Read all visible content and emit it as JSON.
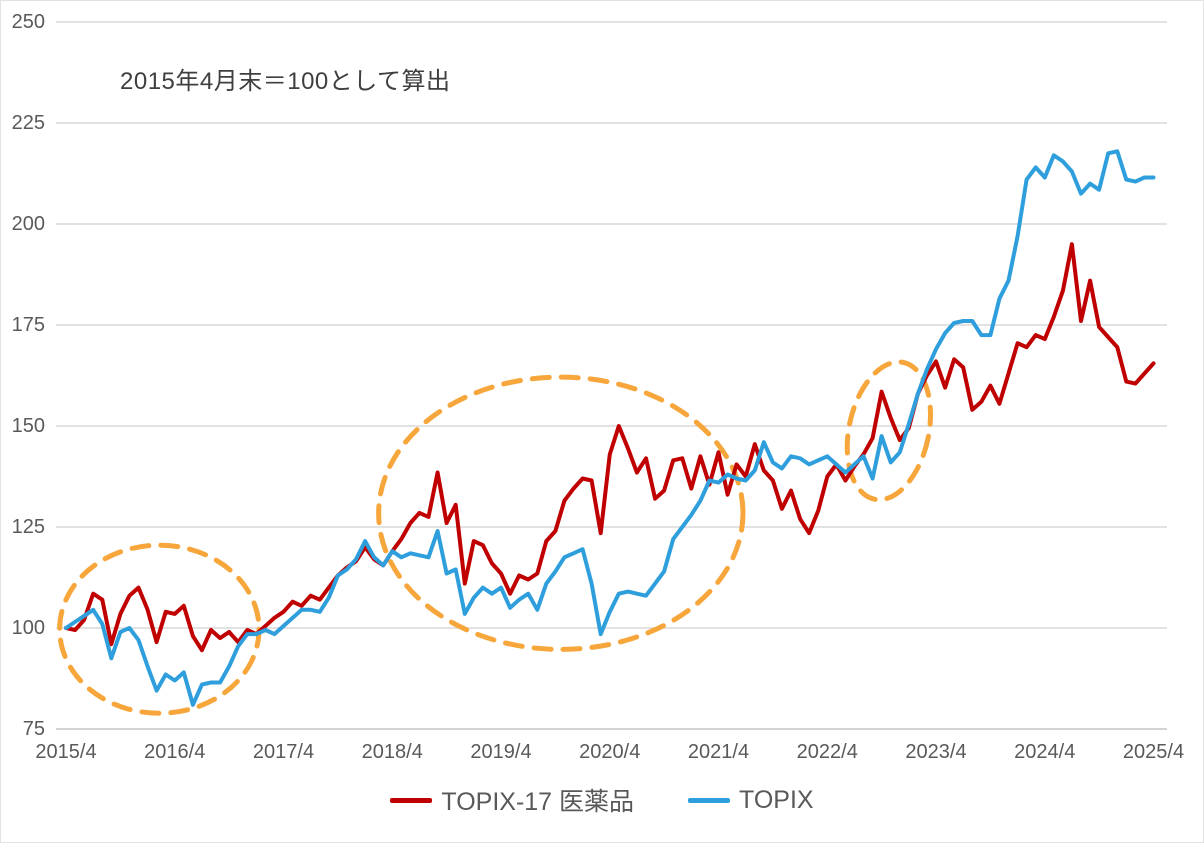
{
  "annotation": {
    "note": "2015年4月末＝100として算出"
  },
  "colors": {
    "pharma": "#C00000",
    "topix": "#2E9FDC",
    "highlight": "#F6A63B",
    "grid": "#D9D9D9",
    "axis_line": "#C4C4C4",
    "axis_text": "#595959",
    "note_text": "#3F3F3F"
  },
  "chart_data": {
    "type": "line",
    "title": "",
    "note": "2015年4月末＝100として算出",
    "xlabel": "",
    "ylabel": "",
    "ylim": [
      75,
      250
    ],
    "grid": "horizontal",
    "legend_position": "bottom-center",
    "y_ticks": [
      75,
      100,
      125,
      150,
      175,
      200,
      225,
      250
    ],
    "x_tick_labels": [
      "2015/4",
      "2016/4",
      "2017/4",
      "2018/4",
      "2019/4",
      "2020/4",
      "2021/4",
      "2022/4",
      "2023/4",
      "2024/4",
      "2025/4"
    ],
    "x_start": "2015/4",
    "x_interval": "monthly",
    "series": [
      {
        "name": "TOPIX-17 医薬品",
        "color": "#C00000",
        "values": [
          100,
          99.5,
          102,
          108.5,
          107,
          96,
          103.5,
          108,
          110,
          104.5,
          96.5,
          104,
          103.5,
          105.5,
          98,
          94.5,
          99.5,
          97.5,
          99,
          96.5,
          99.5,
          98.5,
          100.5,
          102.5,
          104,
          106.5,
          105.5,
          108,
          107,
          110,
          113,
          115,
          116.5,
          120,
          117,
          115.5,
          119,
          122,
          126,
          128.5,
          127.5,
          138.5,
          126,
          130.5,
          111,
          121.5,
          120.5,
          116,
          113.5,
          108.5,
          113,
          112,
          113.5,
          121.5,
          124,
          131.5,
          134.5,
          137,
          136.5,
          123.5,
          143,
          150,
          144.5,
          138.5,
          142,
          132,
          134,
          141.5,
          142,
          134.5,
          142.5,
          135.5,
          143.5,
          133,
          140.5,
          137.5,
          145.5,
          139,
          136.5,
          129.5,
          134,
          127,
          123.5,
          129,
          137.5,
          140.5,
          136.5,
          140,
          143,
          147,
          158.5,
          152,
          146.5,
          149.5,
          158,
          162.5,
          166,
          159.5,
          166.5,
          164.5,
          154,
          156,
          160,
          155.5,
          163,
          170.5,
          169.5,
          172.5,
          171.5,
          177,
          183.5,
          195,
          176,
          186,
          174.5,
          172,
          169.5,
          161,
          160.5,
          163,
          165.5
        ]
      },
      {
        "name": "TOPIX",
        "color": "#2E9FDC",
        "values": [
          100,
          101.5,
          103,
          104.5,
          101,
          92.5,
          99,
          100,
          97,
          90.5,
          84.5,
          88.5,
          87,
          89,
          81,
          86,
          86.5,
          86.5,
          90.5,
          95.5,
          98.5,
          98.5,
          99.5,
          98.5,
          100.5,
          102.5,
          104.5,
          104.5,
          104,
          107.5,
          113,
          114.5,
          117,
          121.5,
          117.5,
          115.5,
          119,
          117.5,
          118.5,
          118,
          117.5,
          124,
          113.5,
          114.5,
          103.5,
          107.5,
          110,
          108.5,
          110,
          105,
          107,
          108.5,
          104.5,
          111,
          114,
          117.5,
          118.5,
          119.5,
          111,
          98.5,
          104,
          108.5,
          109,
          108.5,
          108,
          111,
          114,
          122,
          125,
          128,
          131.5,
          136.5,
          136,
          138,
          137,
          136.5,
          139,
          146,
          141,
          139.5,
          142.5,
          142,
          140.5,
          141.5,
          142.5,
          140.5,
          138.5,
          140.5,
          142.5,
          137,
          147.5,
          141,
          143.5,
          150.5,
          158,
          164,
          169,
          173,
          175.5,
          176,
          176,
          172.5,
          172.5,
          181.5,
          186,
          197,
          211,
          214,
          211.5,
          217,
          215.5,
          213,
          207.5,
          210,
          208.5,
          217.5,
          218,
          211,
          210.5,
          211.5,
          211.5
        ]
      }
    ],
    "highlight_ellipses": [
      {
        "center_month": 10.3,
        "center_value": 99.7,
        "radius_months": 11.0,
        "radius_value": 20.8,
        "rotation_deg": 0
      },
      {
        "center_month": 54.6,
        "center_value": 128.4,
        "radius_months": 20.1,
        "radius_value": 33.7,
        "rotation_deg": 0
      },
      {
        "center_month": 90.8,
        "center_value": 148.8,
        "radius_months": 4.4,
        "radius_value": 17.3,
        "rotation_deg": 12
      }
    ]
  }
}
